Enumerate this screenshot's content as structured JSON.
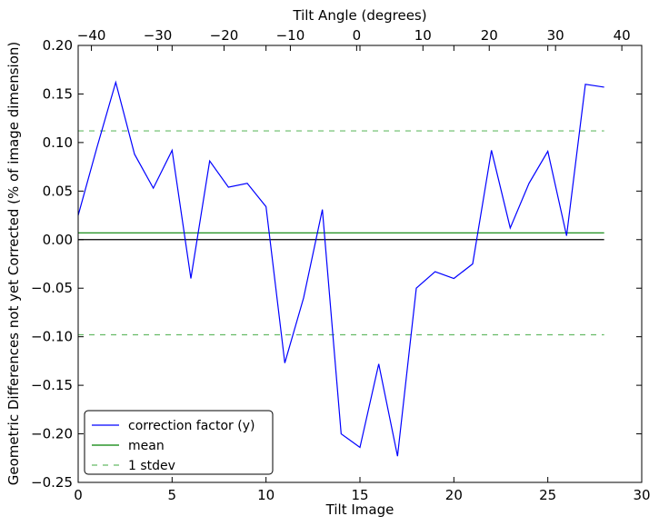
{
  "chart_data": {
    "type": "line",
    "xlabel": "Tilt Image",
    "ylabel": "Geometric Differences not yet Corrected (% of image dimension)",
    "top_xlabel": "Tilt Angle (degrees)",
    "xlim": [
      0,
      30
    ],
    "ylim": [
      -0.25,
      0.2
    ],
    "top_xlim": [
      -42,
      43
    ],
    "x_ticks": [
      0,
      5,
      10,
      15,
      20,
      25,
      30
    ],
    "y_ticks": [
      -0.25,
      -0.2,
      -0.15,
      -0.1,
      -0.05,
      0.0,
      0.05,
      0.1,
      0.15,
      0.2
    ],
    "x_tick_labels": [
      "0",
      "5",
      "10",
      "15",
      "20",
      "25",
      "30"
    ],
    "y_tick_labels": [
      "−0.25",
      "−0.20",
      "−0.15",
      "−0.10",
      "−0.05",
      "0.00",
      "0.05",
      "0.10",
      "0.15",
      "0.20"
    ],
    "top_ticks": [
      -40,
      -30,
      -20,
      -10,
      0,
      10,
      20,
      30,
      40
    ],
    "top_tick_labels": [
      "−40",
      "−30",
      "−20",
      "−10",
      "0",
      "10",
      "20",
      "30",
      "40"
    ],
    "grid": false,
    "legend_position": "bottom-left",
    "series": [
      {
        "name": "correction factor (y)",
        "color": "#0000ff",
        "style": "solid",
        "x": [
          0,
          1,
          2,
          3,
          4,
          5,
          6,
          7,
          8,
          9,
          10,
          11,
          12,
          13,
          14,
          15,
          16,
          17,
          18,
          19,
          20,
          21,
          22,
          23,
          24,
          25,
          26,
          27,
          28
        ],
        "values": [
          0.025,
          0.095,
          0.162,
          0.088,
          0.053,
          0.092,
          -0.04,
          0.081,
          0.054,
          0.058,
          0.034,
          -0.127,
          -0.06,
          0.031,
          -0.2,
          -0.214,
          -0.128,
          -0.223,
          -0.05,
          -0.033,
          -0.04,
          -0.025,
          0.092,
          0.012,
          0.058,
          0.091,
          0.004,
          0.16,
          0.157
        ]
      },
      {
        "name": "mean",
        "color": "#008000",
        "style": "solid",
        "x": [
          0,
          28
        ],
        "values": [
          0.007,
          0.007
        ]
      },
      {
        "name": "1 stdev",
        "color": "#66bb66",
        "style": "dashed",
        "x": [
          0,
          28
        ],
        "values": [
          0.112,
          0.112
        ]
      },
      {
        "name": "",
        "color": "#66bb66",
        "style": "dashed",
        "x": [
          0,
          28
        ],
        "values": [
          -0.098,
          -0.098
        ]
      },
      {
        "name": "",
        "color": "#000000",
        "style": "solid",
        "x": [
          0,
          28
        ],
        "values": [
          0.0,
          0.0
        ]
      }
    ]
  }
}
